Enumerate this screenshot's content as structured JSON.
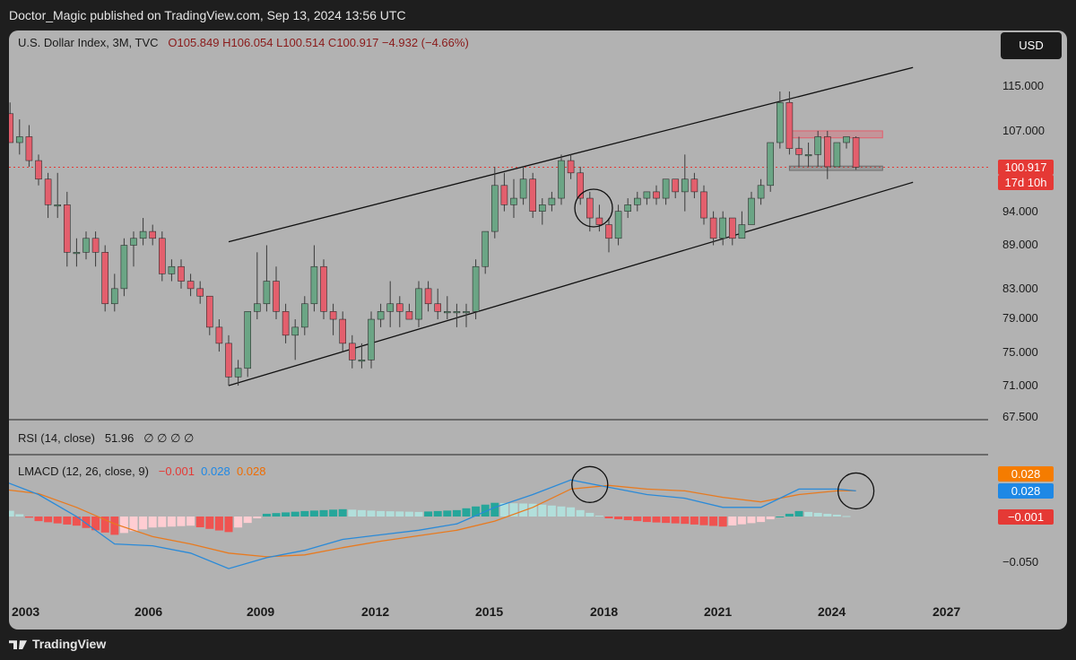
{
  "header": {
    "publisher_line": "Doctor_Magic published on TradingView.com, Sep 13, 2024 13:56 UTC"
  },
  "main_legend": {
    "symbol": "U.S. Dollar Index, 3M, TVC",
    "ohlc": "O105.849  H106.054  L100.514  C100.917  −4.932 (−4.66%)"
  },
  "currency_button": "USD",
  "price_axis": {
    "ticks": [
      "115.000",
      "107.000",
      "94.000",
      "89.000",
      "83.000",
      "79.000",
      "75.000",
      "71.000",
      "67.500"
    ]
  },
  "price_badges": {
    "last_price": "100.917",
    "countdown": "17d 10h"
  },
  "rsi_legend": {
    "title": "RSI (14, close)",
    "value": "51.96",
    "extras": "∅ ∅ ∅ ∅"
  },
  "macd_legend": {
    "title": "LMACD (12, 26, close, 9)",
    "histogram": "−0.001",
    "macd": "0.028",
    "signal": "0.028"
  },
  "macd_axis": {
    "tick": "−0.050"
  },
  "macd_badges": {
    "signal": "0.028",
    "macd": "0.028",
    "histogram": "−0.001"
  },
  "time_axis": {
    "ticks": [
      "2003",
      "2006",
      "2009",
      "2012",
      "2015",
      "2018",
      "2021",
      "2024",
      "2027"
    ]
  },
  "footer": {
    "brand": "TradingView"
  },
  "colors": {
    "bull": "#6ba585",
    "bear": "#e35f6d",
    "macd_line": "#2a8ad8",
    "signal_line": "#e87a1f",
    "hist_pos_strong": "#26a69a",
    "hist_pos_weak": "#b2dfdb",
    "hist_neg_strong": "#ef5350",
    "hist_neg_weak": "#ffcdd2"
  },
  "chart_data": [
    {
      "type": "candlestick",
      "title": "U.S. Dollar Index, 3M, TVC",
      "interval": "3M",
      "x_range": [
        2002,
        2027.5
      ],
      "y_scale": "log",
      "y_ticks": [
        67.5,
        71,
        75,
        79,
        83,
        89,
        94,
        107,
        115
      ],
      "candles": [
        {
          "t": 2002.0,
          "o": 120,
          "h": 121,
          "l": 107,
          "c": 110
        },
        {
          "t": 2002.25,
          "o": 110,
          "h": 112,
          "l": 105,
          "c": 105
        },
        {
          "t": 2002.5,
          "o": 105,
          "h": 109,
          "l": 103,
          "c": 106
        },
        {
          "t": 2002.75,
          "o": 106,
          "h": 108,
          "l": 101,
          "c": 102
        },
        {
          "t": 2003.0,
          "o": 102,
          "h": 103,
          "l": 98,
          "c": 99
        },
        {
          "t": 2003.25,
          "o": 99,
          "h": 100,
          "l": 93,
          "c": 95
        },
        {
          "t": 2003.5,
          "o": 95,
          "h": 100,
          "l": 93,
          "c": 95
        },
        {
          "t": 2003.75,
          "o": 95,
          "h": 97,
          "l": 86,
          "c": 88
        },
        {
          "t": 2004.0,
          "o": 88,
          "h": 90,
          "l": 86,
          "c": 88
        },
        {
          "t": 2004.25,
          "o": 88,
          "h": 91,
          "l": 87,
          "c": 90
        },
        {
          "t": 2004.5,
          "o": 90,
          "h": 91,
          "l": 86,
          "c": 88
        },
        {
          "t": 2004.75,
          "o": 88,
          "h": 89,
          "l": 80,
          "c": 81
        },
        {
          "t": 2005.0,
          "o": 81,
          "h": 85,
          "l": 80,
          "c": 83
        },
        {
          "t": 2005.25,
          "o": 83,
          "h": 90,
          "l": 82,
          "c": 89
        },
        {
          "t": 2005.5,
          "o": 89,
          "h": 91,
          "l": 86,
          "c": 90
        },
        {
          "t": 2005.75,
          "o": 90,
          "h": 93,
          "l": 89,
          "c": 91
        },
        {
          "t": 2006.0,
          "o": 91,
          "h": 92,
          "l": 89,
          "c": 90
        },
        {
          "t": 2006.25,
          "o": 90,
          "h": 91,
          "l": 84,
          "c": 85
        },
        {
          "t": 2006.5,
          "o": 85,
          "h": 87,
          "l": 84,
          "c": 86
        },
        {
          "t": 2006.75,
          "o": 86,
          "h": 87,
          "l": 83,
          "c": 84
        },
        {
          "t": 2007.0,
          "o": 84,
          "h": 85,
          "l": 82,
          "c": 83
        },
        {
          "t": 2007.25,
          "o": 83,
          "h": 84,
          "l": 81,
          "c": 82
        },
        {
          "t": 2007.5,
          "o": 82,
          "h": 82,
          "l": 77,
          "c": 78
        },
        {
          "t": 2007.75,
          "o": 78,
          "h": 79,
          "l": 75,
          "c": 76
        },
        {
          "t": 2008.0,
          "o": 76,
          "h": 77,
          "l": 71,
          "c": 72
        },
        {
          "t": 2008.25,
          "o": 72,
          "h": 74,
          "l": 71,
          "c": 73
        },
        {
          "t": 2008.5,
          "o": 73,
          "h": 80,
          "l": 72,
          "c": 80
        },
        {
          "t": 2008.75,
          "o": 80,
          "h": 88,
          "l": 79,
          "c": 81
        },
        {
          "t": 2009.0,
          "o": 81,
          "h": 89,
          "l": 80,
          "c": 84
        },
        {
          "t": 2009.25,
          "o": 84,
          "h": 86,
          "l": 79,
          "c": 80
        },
        {
          "t": 2009.5,
          "o": 80,
          "h": 81,
          "l": 76,
          "c": 77
        },
        {
          "t": 2009.75,
          "o": 77,
          "h": 79,
          "l": 74,
          "c": 78
        },
        {
          "t": 2010.0,
          "o": 78,
          "h": 82,
          "l": 77,
          "c": 81
        },
        {
          "t": 2010.25,
          "o": 81,
          "h": 89,
          "l": 80,
          "c": 86
        },
        {
          "t": 2010.5,
          "o": 86,
          "h": 87,
          "l": 79,
          "c": 80
        },
        {
          "t": 2010.75,
          "o": 80,
          "h": 81,
          "l": 77,
          "c": 79
        },
        {
          "t": 2011.0,
          "o": 79,
          "h": 80,
          "l": 75,
          "c": 76
        },
        {
          "t": 2011.25,
          "o": 76,
          "h": 77,
          "l": 73,
          "c": 74
        },
        {
          "t": 2011.5,
          "o": 74,
          "h": 76,
          "l": 73,
          "c": 74
        },
        {
          "t": 2011.75,
          "o": 74,
          "h": 80,
          "l": 73,
          "c": 79
        },
        {
          "t": 2012.0,
          "o": 79,
          "h": 81,
          "l": 78,
          "c": 80
        },
        {
          "t": 2012.25,
          "o": 80,
          "h": 84,
          "l": 78,
          "c": 81
        },
        {
          "t": 2012.5,
          "o": 81,
          "h": 82,
          "l": 78,
          "c": 80
        },
        {
          "t": 2012.75,
          "o": 80,
          "h": 81,
          "l": 79,
          "c": 79
        },
        {
          "t": 2013.0,
          "o": 79,
          "h": 84,
          "l": 78,
          "c": 83
        },
        {
          "t": 2013.25,
          "o": 83,
          "h": 84,
          "l": 80,
          "c": 81
        },
        {
          "t": 2013.5,
          "o": 81,
          "h": 83,
          "l": 79,
          "c": 80
        },
        {
          "t": 2013.75,
          "o": 80,
          "h": 82,
          "l": 79,
          "c": 80
        },
        {
          "t": 2014.0,
          "o": 80,
          "h": 81,
          "l": 78,
          "c": 80
        },
        {
          "t": 2014.25,
          "o": 80,
          "h": 81,
          "l": 78,
          "c": 80
        },
        {
          "t": 2014.5,
          "o": 80,
          "h": 87,
          "l": 79,
          "c": 86
        },
        {
          "t": 2014.75,
          "o": 86,
          "h": 91,
          "l": 85,
          "c": 91
        },
        {
          "t": 2015.0,
          "o": 91,
          "h": 101,
          "l": 90,
          "c": 98
        },
        {
          "t": 2015.25,
          "o": 98,
          "h": 100,
          "l": 94,
          "c": 95
        },
        {
          "t": 2015.5,
          "o": 95,
          "h": 99,
          "l": 93,
          "c": 96
        },
        {
          "t": 2015.75,
          "o": 96,
          "h": 101,
          "l": 95,
          "c": 99
        },
        {
          "t": 2016.0,
          "o": 99,
          "h": 100,
          "l": 93,
          "c": 94
        },
        {
          "t": 2016.25,
          "o": 94,
          "h": 96,
          "l": 92,
          "c": 95
        },
        {
          "t": 2016.5,
          "o": 95,
          "h": 97,
          "l": 94,
          "c": 96
        },
        {
          "t": 2016.75,
          "o": 96,
          "h": 103,
          "l": 95,
          "c": 102
        },
        {
          "t": 2017.0,
          "o": 102,
          "h": 103,
          "l": 99,
          "c": 100
        },
        {
          "t": 2017.25,
          "o": 100,
          "h": 101,
          "l": 95,
          "c": 96
        },
        {
          "t": 2017.5,
          "o": 96,
          "h": 97,
          "l": 91,
          "c": 93
        },
        {
          "t": 2017.75,
          "o": 93,
          "h": 95,
          "l": 91,
          "c": 92
        },
        {
          "t": 2018.0,
          "o": 92,
          "h": 93,
          "l": 88,
          "c": 90
        },
        {
          "t": 2018.25,
          "o": 90,
          "h": 95,
          "l": 89,
          "c": 94
        },
        {
          "t": 2018.5,
          "o": 94,
          "h": 96,
          "l": 93,
          "c": 95
        },
        {
          "t": 2018.75,
          "o": 95,
          "h": 97,
          "l": 94,
          "c": 96
        },
        {
          "t": 2019.0,
          "o": 96,
          "h": 97,
          "l": 95,
          "c": 97
        },
        {
          "t": 2019.25,
          "o": 97,
          "h": 98,
          "l": 95,
          "c": 96
        },
        {
          "t": 2019.5,
          "o": 96,
          "h": 99,
          "l": 95,
          "c": 99
        },
        {
          "t": 2019.75,
          "o": 99,
          "h": 99,
          "l": 96,
          "c": 97
        },
        {
          "t": 2020.0,
          "o": 97,
          "h": 103,
          "l": 94,
          "c": 99
        },
        {
          "t": 2020.25,
          "o": 99,
          "h": 100,
          "l": 96,
          "c": 97
        },
        {
          "t": 2020.5,
          "o": 97,
          "h": 98,
          "l": 92,
          "c": 93
        },
        {
          "t": 2020.75,
          "o": 93,
          "h": 94,
          "l": 89,
          "c": 90
        },
        {
          "t": 2021.0,
          "o": 90,
          "h": 94,
          "l": 89,
          "c": 93
        },
        {
          "t": 2021.25,
          "o": 93,
          "h": 93,
          "l": 89,
          "c": 90
        },
        {
          "t": 2021.5,
          "o": 90,
          "h": 94,
          "l": 90,
          "c": 92
        },
        {
          "t": 2021.75,
          "o": 92,
          "h": 97,
          "l": 92,
          "c": 96
        },
        {
          "t": 2022.0,
          "o": 96,
          "h": 99,
          "l": 95,
          "c": 98
        },
        {
          "t": 2022.25,
          "o": 98,
          "h": 105,
          "l": 97,
          "c": 105
        },
        {
          "t": 2022.5,
          "o": 105,
          "h": 114,
          "l": 104,
          "c": 112
        },
        {
          "t": 2022.75,
          "o": 112,
          "h": 114,
          "l": 103,
          "c": 104
        },
        {
          "t": 2023.0,
          "o": 104,
          "h": 106,
          "l": 101,
          "c": 103
        },
        {
          "t": 2023.25,
          "o": 103,
          "h": 105,
          "l": 101,
          "c": 103
        },
        {
          "t": 2023.5,
          "o": 103,
          "h": 107,
          "l": 101,
          "c": 106
        },
        {
          "t": 2023.75,
          "o": 106,
          "h": 107,
          "l": 99,
          "c": 101
        },
        {
          "t": 2024.0,
          "o": 101,
          "h": 105,
          "l": 101,
          "c": 105
        },
        {
          "t": 2024.25,
          "o": 105,
          "h": 106,
          "l": 104,
          "c": 106
        },
        {
          "t": 2024.5,
          "o": 105.849,
          "h": 106.054,
          "l": 100.514,
          "c": 100.917
        }
      ],
      "last_price": 100.917,
      "channel": {
        "upper": [
          [
            2008.0,
            89.5
          ],
          [
            2026.0,
            118.5
          ]
        ],
        "lower": [
          [
            2008.0,
            71.0
          ],
          [
            2026.0,
            98.5
          ]
        ]
      },
      "range_zones": [
        {
          "from": 2022.75,
          "to": 2025.2,
          "low": 105.8,
          "high": 107.0,
          "color": "#e35f6d"
        },
        {
          "from": 2022.75,
          "to": 2025.2,
          "low": 100.4,
          "high": 101.1,
          "color": "#6b6b6b"
        }
      ],
      "highlight_circles": [
        {
          "t": 2017.6,
          "y": 94.5
        }
      ]
    },
    {
      "type": "line",
      "title": "RSI (14, close)",
      "values_label": "51.96"
    },
    {
      "type": "bar",
      "title": "LMACD (12, 26, close, 9)",
      "x_range": [
        2002,
        2027.5
      ],
      "y_range": [
        -0.06,
        0.045
      ],
      "y_ticks": [
        -0.05
      ],
      "x": [
        2002.0,
        2003.0,
        2004.0,
        2005.0,
        2006.0,
        2007.0,
        2008.0,
        2009.0,
        2010.0,
        2011.0,
        2012.0,
        2013.0,
        2014.0,
        2015.0,
        2016.0,
        2017.0,
        2018.0,
        2019.0,
        2020.0,
        2021.0,
        2022.0,
        2023.0,
        2024.0,
        2024.5
      ],
      "series": [
        {
          "name": "MACD",
          "values": [
            0.04,
            0.024,
            0.0,
            -0.03,
            -0.032,
            -0.04,
            -0.057,
            -0.045,
            -0.037,
            -0.025,
            -0.02,
            -0.015,
            -0.008,
            0.01,
            0.024,
            0.04,
            0.032,
            0.024,
            0.02,
            0.01,
            0.01,
            0.03,
            0.03,
            0.028
          ]
        },
        {
          "name": "Signal",
          "values": [
            0.03,
            0.025,
            0.01,
            -0.008,
            -0.022,
            -0.03,
            -0.04,
            -0.044,
            -0.042,
            -0.034,
            -0.027,
            -0.021,
            -0.015,
            -0.005,
            0.01,
            0.03,
            0.034,
            0.03,
            0.028,
            0.021,
            0.016,
            0.024,
            0.028,
            0.028
          ]
        },
        {
          "name": "Histogram",
          "values": [
            0.01,
            -0.005,
            -0.01,
            -0.02,
            -0.012,
            -0.01,
            -0.017,
            0.003,
            0.006,
            0.008,
            0.006,
            0.005,
            0.007,
            0.015,
            0.014,
            0.01,
            -0.002,
            -0.006,
            -0.008,
            -0.011,
            -0.006,
            0.006,
            0.002,
            -0.001
          ]
        }
      ],
      "highlight_circles": [
        {
          "t": 2017.5,
          "y": 0.035
        },
        {
          "t": 2024.5,
          "y": 0.028
        }
      ]
    }
  ]
}
